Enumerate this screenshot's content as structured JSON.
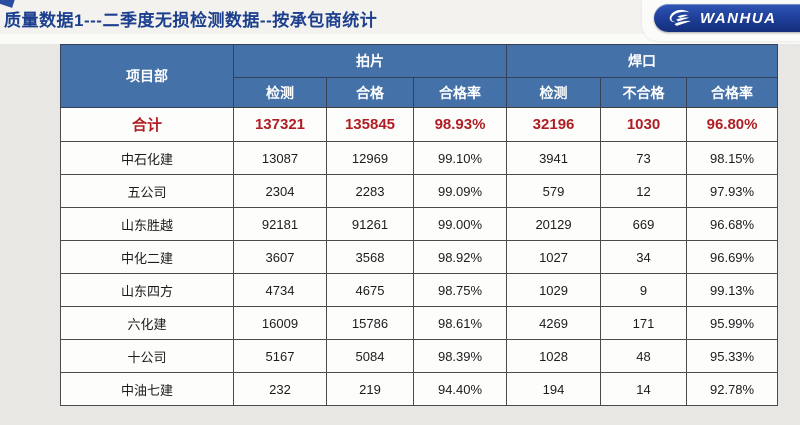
{
  "title": {
    "text": "质量数据1---二季度无损检测数据--按承包商统计",
    "color": "#1c3f8e"
  },
  "logo": {
    "text": "WANHUA",
    "icon": "wanhua-swoosh-icon",
    "pill_color": "#1d3d96"
  },
  "table": {
    "header_bg": "#4471a7",
    "total_color": "#b01e23",
    "corner_header": "项目部",
    "groups": [
      "拍片",
      "焊口"
    ],
    "sub_headers": [
      "检测",
      "合格",
      "合格率",
      "检测",
      "不合格",
      "合格率"
    ],
    "total_row": {
      "label": "合计",
      "values": [
        "137321",
        "135845",
        "98.93%",
        "32196",
        "1030",
        "96.80%"
      ]
    },
    "rows": [
      {
        "label": "中石化建",
        "values": [
          "13087",
          "12969",
          "99.10%",
          "3941",
          "73",
          "98.15%"
        ]
      },
      {
        "label": "五公司",
        "values": [
          "2304",
          "2283",
          "99.09%",
          "579",
          "12",
          "97.93%"
        ]
      },
      {
        "label": "山东胜越",
        "values": [
          "92181",
          "91261",
          "99.00%",
          "20129",
          "669",
          "96.68%"
        ]
      },
      {
        "label": "中化二建",
        "values": [
          "3607",
          "3568",
          "98.92%",
          "1027",
          "34",
          "96.69%"
        ]
      },
      {
        "label": "山东四方",
        "values": [
          "4734",
          "4675",
          "98.75%",
          "1029",
          "9",
          "99.13%"
        ]
      },
      {
        "label": "六化建",
        "values": [
          "16009",
          "15786",
          "98.61%",
          "4269",
          "171",
          "95.99%"
        ]
      },
      {
        "label": "十公司",
        "values": [
          "5167",
          "5084",
          "98.39%",
          "1028",
          "48",
          "95.33%"
        ]
      },
      {
        "label": "中油七建",
        "values": [
          "232",
          "219",
          "94.40%",
          "194",
          "14",
          "92.78%"
        ]
      }
    ]
  }
}
